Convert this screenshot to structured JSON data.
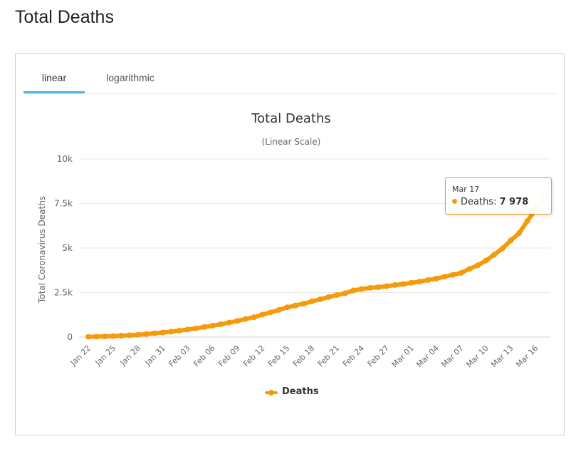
{
  "page": {
    "title": "Total Deaths"
  },
  "tabs": [
    {
      "label": "linear",
      "active": true
    },
    {
      "label": "logarithmic",
      "active": false
    }
  ],
  "colors": {
    "series": "#f59b0b",
    "tab_accent": "#4ab4e6"
  },
  "tooltip": {
    "date": "Mar 17",
    "series": "Deaths",
    "value": "7 978"
  },
  "chart_data": {
    "type": "line",
    "title": "Total Deaths",
    "subtitle": "(Linear Scale)",
    "ylabel": "Total Coronavirus Deaths",
    "xlabel": "",
    "ylim": [
      0,
      10000
    ],
    "y_ticks": [
      0,
      2500,
      5000,
      7500,
      10000
    ],
    "y_tick_labels": [
      "0",
      "2.5k",
      "5k",
      "7.5k",
      "10k"
    ],
    "grid": true,
    "legend_position": "bottom-center",
    "x_tick_labels": [
      "Jan 22",
      "Jan 25",
      "Jan 28",
      "Jan 31",
      "Feb 03",
      "Feb 06",
      "Feb 09",
      "Feb 12",
      "Feb 15",
      "Feb 18",
      "Feb 21",
      "Feb 24",
      "Feb 27",
      "Mar 01",
      "Mar 04",
      "Mar 07",
      "Mar 10",
      "Mar 13",
      "Mar 16"
    ],
    "categories": [
      "Jan 22",
      "Jan 23",
      "Jan 24",
      "Jan 25",
      "Jan 26",
      "Jan 27",
      "Jan 28",
      "Jan 29",
      "Jan 30",
      "Jan 31",
      "Feb 01",
      "Feb 02",
      "Feb 03",
      "Feb 04",
      "Feb 05",
      "Feb 06",
      "Feb 07",
      "Feb 08",
      "Feb 09",
      "Feb 10",
      "Feb 11",
      "Feb 12",
      "Feb 13",
      "Feb 14",
      "Feb 15",
      "Feb 16",
      "Feb 17",
      "Feb 18",
      "Feb 19",
      "Feb 20",
      "Feb 21",
      "Feb 22",
      "Feb 23",
      "Feb 24",
      "Feb 25",
      "Feb 26",
      "Feb 27",
      "Feb 28",
      "Feb 29",
      "Mar 01",
      "Mar 02",
      "Mar 03",
      "Mar 04",
      "Mar 05",
      "Mar 06",
      "Mar 07",
      "Mar 08",
      "Mar 09",
      "Mar 10",
      "Mar 11",
      "Mar 12",
      "Mar 13",
      "Mar 14",
      "Mar 15",
      "Mar 16",
      "Mar 17"
    ],
    "series": [
      {
        "name": "Deaths",
        "values": [
          17,
          25,
          41,
          56,
          80,
          106,
          132,
          170,
          213,
          259,
          304,
          362,
          426,
          492,
          565,
          638,
          724,
          813,
          910,
          1018,
          1115,
          1261,
          1383,
          1526,
          1669,
          1775,
          1873,
          2009,
          2126,
          2247,
          2360,
          2460,
          2618,
          2699,
          2763,
          2800,
          2858,
          2923,
          2977,
          3050,
          3117,
          3202,
          3285,
          3387,
          3494,
          3599,
          3827,
          4025,
          4296,
          4628,
          4981,
          5429,
          5833,
          6520,
          7162,
          7978
        ]
      }
    ]
  }
}
